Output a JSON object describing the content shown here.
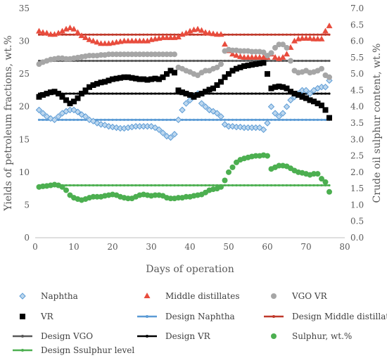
{
  "chart_data": {
    "type": "scatter",
    "xlabel": "Days of operation",
    "ylabel": "Yields of petroleum fractions, wt.%",
    "y2label": "Crude oil sulphur content, wt.%",
    "xlim": [
      0,
      80
    ],
    "ylim": [
      0,
      35
    ],
    "y2lim": [
      0,
      7
    ],
    "x_ticks": [
      "0",
      "10",
      "20",
      "30",
      "40",
      "50",
      "60",
      "70",
      "80"
    ],
    "y_ticks": [
      "0",
      "5",
      "10",
      "15",
      "20",
      "25",
      "30",
      "35"
    ],
    "y2_ticks": [
      "0.0",
      "0.5",
      "1.0",
      "1.5",
      "2.0",
      "2.5",
      "3.0",
      "3.5",
      "4.0",
      "4.5",
      "5.0",
      "5.5",
      "6.0",
      "6.5",
      "7.0"
    ],
    "grid": false,
    "legend_position": "bottom",
    "series": [
      {
        "name": "Naphtha",
        "marker": "diamond",
        "color": "#5b9bd5",
        "axis": "left",
        "x": [
          1,
          2,
          3,
          4,
          5,
          6,
          7,
          8,
          9,
          10,
          11,
          12,
          13,
          14,
          15,
          16,
          17,
          18,
          19,
          20,
          21,
          22,
          23,
          24,
          25,
          26,
          27,
          28,
          29,
          30,
          31,
          32,
          33,
          34,
          35,
          36,
          37,
          38,
          39,
          40,
          41,
          42,
          43,
          44,
          45,
          46,
          47,
          48,
          49,
          50,
          51,
          52,
          53,
          54,
          55,
          56,
          57,
          58,
          59,
          60,
          61,
          62,
          63,
          64,
          65,
          66,
          67,
          68,
          69,
          70,
          71,
          72,
          73,
          74,
          75,
          76
        ],
        "y": [
          19.5,
          19.0,
          18.5,
          18.2,
          18.0,
          18.5,
          19.0,
          19.3,
          19.5,
          19.5,
          19.2,
          18.8,
          18.5,
          18.0,
          17.8,
          17.5,
          17.3,
          17.2,
          17.0,
          16.9,
          16.8,
          16.7,
          16.7,
          16.8,
          16.9,
          17.0,
          17.0,
          17.0,
          17.0,
          17.0,
          16.8,
          16.5,
          16.0,
          15.5,
          15.3,
          15.8,
          18.0,
          19.5,
          20.5,
          21.0,
          21.5,
          22.0,
          20.5,
          20.0,
          19.5,
          19.3,
          19.0,
          18.5,
          17.3,
          17.0,
          17.0,
          16.9,
          16.9,
          16.8,
          16.8,
          16.8,
          16.8,
          16.8,
          16.5,
          17.5,
          20.0,
          19.0,
          18.5,
          19.0,
          20.0,
          21.0,
          21.5,
          22.0,
          22.5,
          22.5,
          22.0,
          22.5,
          22.8,
          23.0,
          23.0,
          24.0
        ]
      },
      {
        "name": "Middle distillates",
        "marker": "triangle",
        "color": "#e84c3d",
        "axis": "left",
        "x": [
          1,
          2,
          3,
          4,
          5,
          6,
          7,
          8,
          9,
          10,
          11,
          12,
          13,
          14,
          15,
          16,
          17,
          18,
          19,
          20,
          21,
          22,
          23,
          24,
          25,
          26,
          27,
          28,
          29,
          30,
          31,
          32,
          33,
          34,
          35,
          36,
          37,
          38,
          39,
          40,
          41,
          42,
          43,
          44,
          45,
          46,
          47,
          48,
          49,
          50,
          51,
          52,
          53,
          54,
          55,
          56,
          57,
          58,
          59,
          60,
          61,
          62,
          63,
          64,
          65,
          66,
          67,
          68,
          69,
          70,
          71,
          72,
          73,
          74,
          75,
          76
        ],
        "y": [
          31.5,
          31.3,
          31.2,
          31.0,
          31.0,
          31.2,
          31.5,
          31.8,
          32.0,
          31.8,
          31.3,
          30.8,
          30.5,
          30.2,
          30.0,
          29.8,
          29.6,
          29.6,
          29.6,
          29.7,
          29.8,
          29.9,
          30.0,
          30.0,
          30.0,
          30.0,
          30.0,
          30.0,
          30.0,
          30.2,
          30.3,
          30.4,
          30.5,
          30.5,
          30.5,
          30.5,
          30.6,
          31.0,
          31.2,
          31.5,
          31.7,
          31.8,
          31.6,
          31.3,
          31.2,
          31.1,
          31.0,
          31.0,
          29.5,
          28.5,
          28.0,
          27.8,
          27.6,
          27.5,
          27.5,
          27.5,
          27.5,
          27.5,
          27.5,
          27.5,
          28.0,
          27.5,
          27.3,
          27.5,
          28.0,
          29.0,
          30.0,
          30.3,
          30.4,
          30.4,
          30.4,
          30.3,
          30.3,
          30.3,
          31.5,
          32.3
        ]
      },
      {
        "name": "VGO VR",
        "marker": "circle",
        "color": "#a6a6a6",
        "axis": "left",
        "x": [
          1,
          2,
          3,
          4,
          5,
          6,
          7,
          8,
          9,
          10,
          11,
          12,
          13,
          14,
          15,
          16,
          17,
          18,
          19,
          20,
          21,
          22,
          23,
          24,
          25,
          26,
          27,
          28,
          29,
          30,
          31,
          32,
          33,
          34,
          35,
          36,
          37,
          38,
          39,
          40,
          41,
          42,
          43,
          44,
          45,
          46,
          47,
          48,
          49,
          50,
          51,
          52,
          53,
          54,
          55,
          56,
          57,
          58,
          59,
          60,
          61,
          62,
          63,
          64,
          65,
          66,
          67,
          68,
          69,
          70,
          71,
          72,
          73,
          74,
          75,
          76
        ],
        "y": [
          26.5,
          26.8,
          27.0,
          27.2,
          27.3,
          27.4,
          27.4,
          27.3,
          27.3,
          27.4,
          27.5,
          27.6,
          27.7,
          27.8,
          27.8,
          27.8,
          27.9,
          27.9,
          28.0,
          28.0,
          28.0,
          28.0,
          28.0,
          28.0,
          28.0,
          28.0,
          28.0,
          28.0,
          28.0,
          28.0,
          28.0,
          28.0,
          28.0,
          28.0,
          28.0,
          28.0,
          26.0,
          25.8,
          25.5,
          25.3,
          25.0,
          24.8,
          25.2,
          25.5,
          25.5,
          25.8,
          26.0,
          26.5,
          28.5,
          28.7,
          28.6,
          28.6,
          28.5,
          28.5,
          28.5,
          28.4,
          28.4,
          28.4,
          28.3,
          27.8,
          28.2,
          29.0,
          29.5,
          29.5,
          29.0,
          27.0,
          25.5,
          25.2,
          25.3,
          25.5,
          25.2,
          25.3,
          25.5,
          25.8,
          24.8,
          24.5
        ]
      },
      {
        "name": "VR",
        "marker": "square",
        "color": "#000000",
        "axis": "left",
        "x": [
          1,
          2,
          3,
          4,
          5,
          6,
          7,
          8,
          9,
          10,
          11,
          12,
          13,
          14,
          15,
          16,
          17,
          18,
          19,
          20,
          21,
          22,
          23,
          24,
          25,
          26,
          27,
          28,
          29,
          30,
          31,
          32,
          33,
          34,
          35,
          36,
          37,
          38,
          39,
          40,
          41,
          42,
          43,
          44,
          45,
          46,
          47,
          48,
          49,
          50,
          51,
          52,
          53,
          54,
          55,
          56,
          57,
          58,
          59,
          60,
          61,
          62,
          63,
          64,
          65,
          66,
          67,
          68,
          69,
          70,
          71,
          72,
          73,
          74,
          75,
          76
        ],
        "y": [
          21.5,
          21.8,
          22.0,
          22.2,
          22.3,
          22.0,
          21.5,
          21.0,
          20.5,
          20.8,
          21.3,
          22.0,
          22.5,
          23.0,
          23.3,
          23.5,
          23.7,
          23.8,
          24.0,
          24.2,
          24.3,
          24.4,
          24.5,
          24.5,
          24.4,
          24.3,
          24.2,
          24.2,
          24.1,
          24.2,
          24.3,
          24.2,
          24.5,
          25.0,
          25.5,
          25.2,
          22.5,
          22.2,
          22.0,
          21.8,
          21.5,
          21.8,
          22.0,
          22.3,
          22.6,
          22.8,
          23.3,
          23.8,
          24.5,
          25.0,
          25.5,
          25.8,
          26.0,
          26.2,
          26.3,
          26.4,
          26.5,
          26.6,
          26.7,
          25.0,
          22.8,
          23.0,
          23.1,
          23.0,
          22.8,
          22.3,
          22.0,
          21.8,
          21.5,
          21.3,
          21.0,
          20.8,
          20.5,
          20.2,
          19.5,
          18.3
        ]
      },
      {
        "name": "Design Naphtha",
        "marker": "line",
        "color": "#5b9bd5",
        "axis": "left",
        "x": [
          1,
          76
        ],
        "y": [
          18.0,
          18.0
        ]
      },
      {
        "name": "Design Middle distillates",
        "marker": "line",
        "color": "#c0392b",
        "axis": "left",
        "x": [
          1,
          76
        ],
        "y": [
          31.0,
          31.0
        ]
      },
      {
        "name": "Design VGO",
        "marker": "line",
        "color": "#595959",
        "axis": "left",
        "x": [
          1,
          76
        ],
        "y": [
          27.0,
          27.0
        ]
      },
      {
        "name": "Design VR",
        "marker": "line",
        "color": "#000000",
        "axis": "left",
        "x": [
          1,
          76
        ],
        "y": [
          22.0,
          22.0
        ]
      },
      {
        "name": "Sulphur, wt.%",
        "marker": "circle",
        "color": "#4caf50",
        "axis": "right",
        "x": [
          1,
          2,
          3,
          4,
          5,
          6,
          7,
          8,
          9,
          10,
          11,
          12,
          13,
          14,
          15,
          16,
          17,
          18,
          19,
          20,
          21,
          22,
          23,
          24,
          25,
          26,
          27,
          28,
          29,
          30,
          31,
          32,
          33,
          34,
          35,
          36,
          37,
          38,
          39,
          40,
          41,
          42,
          43,
          44,
          45,
          46,
          47,
          48,
          49,
          50,
          51,
          52,
          53,
          54,
          55,
          56,
          57,
          58,
          59,
          60,
          61,
          62,
          63,
          64,
          65,
          66,
          67,
          68,
          69,
          70,
          71,
          72,
          73,
          74,
          75,
          76
        ],
        "y": [
          1.55,
          1.57,
          1.58,
          1.6,
          1.62,
          1.6,
          1.55,
          1.45,
          1.3,
          1.22,
          1.18,
          1.15,
          1.18,
          1.22,
          1.25,
          1.25,
          1.25,
          1.28,
          1.3,
          1.32,
          1.3,
          1.25,
          1.22,
          1.2,
          1.2,
          1.25,
          1.3,
          1.32,
          1.3,
          1.28,
          1.3,
          1.3,
          1.28,
          1.22,
          1.2,
          1.2,
          1.22,
          1.22,
          1.25,
          1.25,
          1.28,
          1.3,
          1.32,
          1.38,
          1.45,
          1.48,
          1.5,
          1.55,
          1.75,
          2.0,
          2.15,
          2.3,
          2.38,
          2.42,
          2.45,
          2.48,
          2.5,
          2.5,
          2.52,
          2.5,
          2.1,
          2.15,
          2.2,
          2.2,
          2.18,
          2.12,
          2.05,
          2.0,
          1.98,
          1.95,
          1.92,
          1.95,
          1.95,
          1.8,
          1.7,
          1.4
        ]
      },
      {
        "name": "Design Ssulphur level",
        "marker": "line",
        "color": "#4caf50",
        "axis": "right",
        "x": [
          1,
          76
        ],
        "y": [
          1.6,
          1.6
        ]
      }
    ]
  }
}
